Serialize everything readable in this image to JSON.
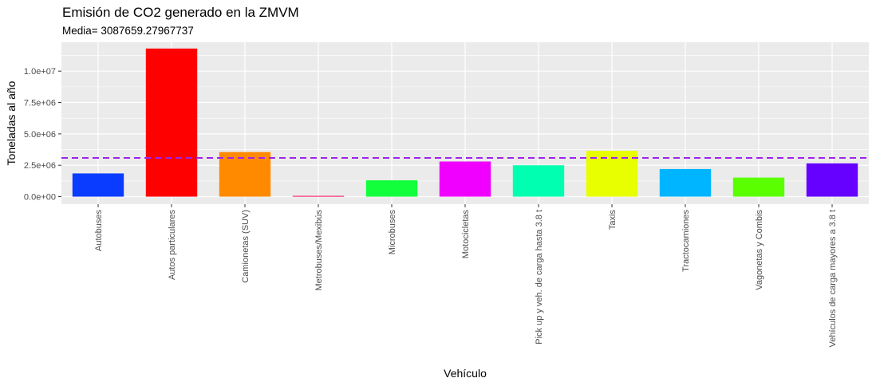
{
  "chart_data": {
    "type": "bar",
    "title": "Emisión de CO2 generado en la ZMVM",
    "subtitle": "Media= 3087659.27967737",
    "xlabel": "Vehículo",
    "ylabel": "Toneladas al año",
    "categories": [
      "Autobuses",
      "Autos particulares",
      "Camionetas (SUV)",
      "Metrobuses/Mexibús",
      "Microbuses",
      "Motocicletas",
      "Pick up y veh. de carga hasta 3.8 t",
      "Taxis",
      "Tractocamiones",
      "Vagonetas y Combis",
      "Vehículos de carga mayores a 3.8 t"
    ],
    "values": [
      1850000,
      11800000,
      3550000,
      60000,
      1300000,
      2800000,
      2500000,
      3650000,
      2200000,
      1520000,
      2650000
    ],
    "colors": [
      "#0a3cff",
      "#ff0000",
      "#ff8a00",
      "#ff0a5a",
      "#12ff3c",
      "#f000ff",
      "#00ffb0",
      "#e8ff00",
      "#00b5ff",
      "#5aff00",
      "#6600ff"
    ],
    "mean": 3087659.27967737,
    "mean_line_color": "#a020f0",
    "ylim": [
      -600000,
      12300000
    ],
    "yticks": [
      0,
      2500000,
      5000000,
      7500000,
      10000000
    ],
    "ytick_labels": [
      "0.0e+00",
      "2.5e+06",
      "5.0e+06",
      "7.5e+06",
      "1.0e+07"
    ],
    "grid": true,
    "panel_background": "#ebebeb",
    "legend": "none"
  }
}
